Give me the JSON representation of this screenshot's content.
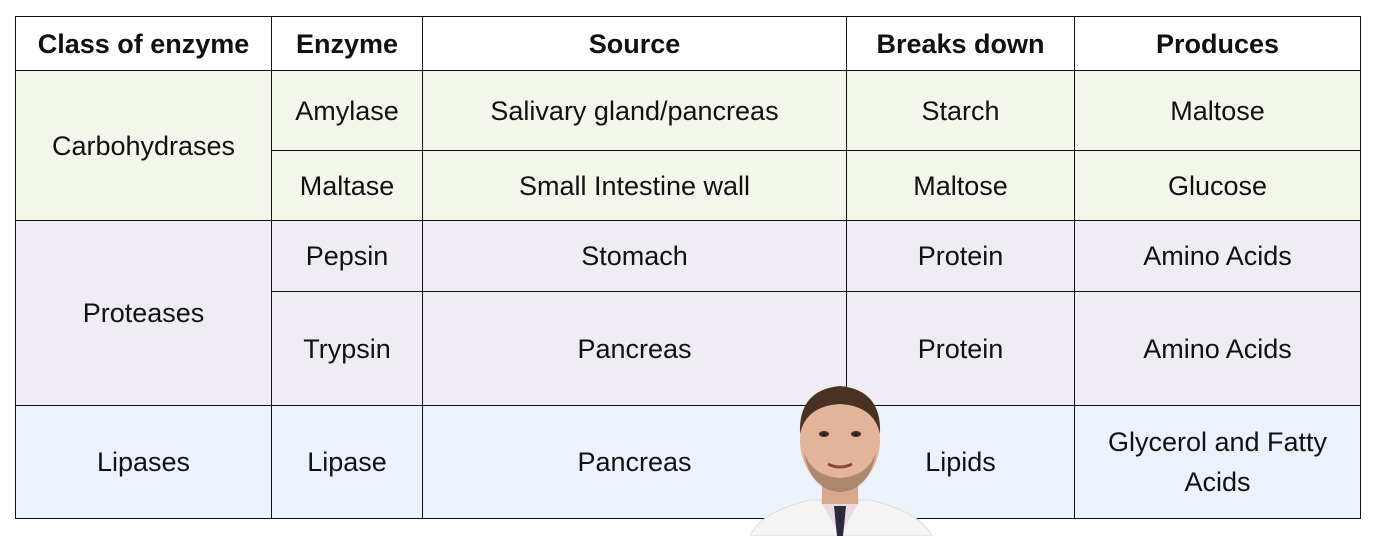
{
  "header": [
    "Class of enzyme",
    "Enzyme",
    "Source",
    "Breaks down",
    "Produces"
  ],
  "groups": [
    {
      "class": "Carbohydrases",
      "rows": [
        [
          "Amylase",
          "Salivary gland/pancreas",
          "Starch",
          "Maltose"
        ],
        [
          "Maltase",
          "Small Intestine wall",
          "Maltose",
          "Glucose"
        ]
      ]
    },
    {
      "class": "Proteases",
      "rows": [
        [
          "Pepsin",
          "Stomach",
          "Protein",
          "Amino Acids"
        ],
        [
          "Trypsin",
          "Pancreas",
          "Protein",
          "Amino Acids"
        ]
      ]
    },
    {
      "class": "Lipases",
      "rows": [
        [
          "Lipase",
          "Pancreas",
          "Lipids",
          "Glycerol and Fatty Acids"
        ]
      ]
    }
  ]
}
